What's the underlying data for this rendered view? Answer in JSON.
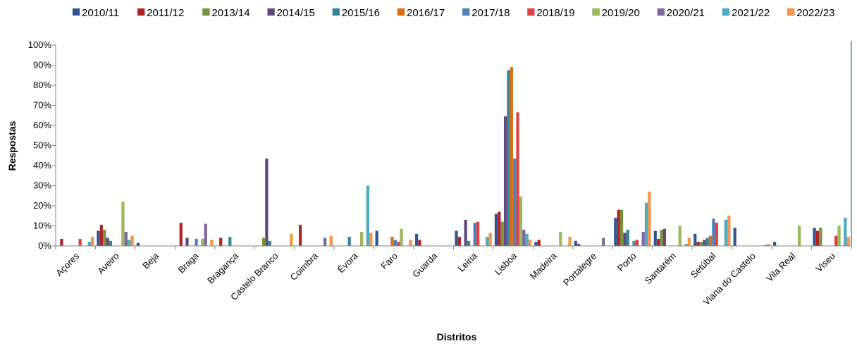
{
  "chart_data": {
    "type": "bar",
    "xlabel": "Distritos",
    "ylabel": "Respostas",
    "ylim": [
      0,
      100
    ],
    "yticks": [
      "0%",
      "10%",
      "20%",
      "30%",
      "40%",
      "50%",
      "60%",
      "70%",
      "80%",
      "90%",
      "100%"
    ],
    "legend_position": "top",
    "grid": false,
    "categories": [
      "Açores",
      "Aveiro",
      "Beja",
      "Braga",
      "Bragança",
      "Castelo Branco",
      "Coimbra",
      "Évora",
      "Faro",
      "Guarda",
      "Leiria",
      "Lisboa",
      "Madeira",
      "Portalegre",
      "Porto",
      "Santarém",
      "Setúbal",
      "Viana do Castelo",
      "Vila Real",
      "Viseu"
    ],
    "series": [
      {
        "name": "2010/11",
        "color": "#2f5597",
        "values": [
          0,
          7.5,
          1.5,
          0,
          0,
          0,
          0,
          0,
          7.5,
          6,
          7.5,
          16,
          2,
          2.5,
          14,
          7.5,
          6,
          9,
          2,
          9
        ]
      },
      {
        "name": "2011/12",
        "color": "#b22222",
        "values": [
          3.5,
          10.5,
          0,
          11.5,
          4,
          0,
          10.5,
          0,
          0,
          3,
          4.5,
          17,
          3,
          1,
          18,
          3.5,
          2,
          0,
          0,
          7.5
        ]
      },
      {
        "name": "2013/14",
        "color": "#77933c",
        "values": [
          0,
          8,
          0,
          0,
          0,
          4,
          0,
          0,
          0,
          0,
          0,
          12,
          0,
          0,
          18,
          8,
          2,
          0,
          0,
          9
        ]
      },
      {
        "name": "2014/15",
        "color": "#60497a",
        "values": [
          0,
          4,
          0,
          4,
          0,
          43.5,
          0,
          0,
          0,
          0,
          13,
          64.5,
          0,
          0,
          6.5,
          8.5,
          3,
          0,
          0,
          0
        ]
      },
      {
        "name": "2015/16",
        "color": "#31859c",
        "values": [
          0,
          2.5,
          0,
          0,
          4.5,
          2.5,
          0,
          4.5,
          0,
          0,
          2.5,
          87.5,
          0,
          0,
          8,
          0,
          4,
          0,
          0,
          0
        ]
      },
      {
        "name": "2016/17",
        "color": "#e46c0a",
        "values": [
          0,
          0,
          0,
          0,
          0,
          0,
          0,
          0,
          4.5,
          0,
          0,
          89,
          0,
          0,
          0,
          0,
          5,
          0,
          0,
          0
        ]
      },
      {
        "name": "2017/18",
        "color": "#4f81bd",
        "values": [
          0,
          0,
          0,
          3.5,
          0,
          0,
          0,
          0,
          3,
          0,
          11.5,
          43.5,
          0,
          0,
          2.5,
          0,
          13.5,
          0,
          0,
          0
        ]
      },
      {
        "name": "2018/19",
        "color": "#e04040",
        "values": [
          3.5,
          0,
          0,
          0,
          0,
          0,
          0,
          0,
          2,
          0,
          12,
          66.5,
          0,
          0,
          3,
          0,
          11.5,
          0,
          0,
          5
        ]
      },
      {
        "name": "2019/20",
        "color": "#9bbb59",
        "values": [
          0,
          22,
          0,
          3.5,
          0,
          0,
          0,
          7,
          8.5,
          0,
          0,
          24.5,
          7,
          0,
          0,
          10,
          0,
          0,
          10,
          10
        ]
      },
      {
        "name": "2020/21",
        "color": "#8064a2",
        "values": [
          0,
          7,
          0,
          11,
          0,
          0,
          4,
          0,
          0,
          0,
          0,
          8,
          0,
          4,
          7,
          0,
          0,
          0,
          0,
          0
        ]
      },
      {
        "name": "2021/22",
        "color": "#4bacc6",
        "values": [
          2,
          3,
          0,
          0,
          0,
          0,
          0,
          30,
          0,
          0,
          4.5,
          6,
          0,
          0,
          21.5,
          1,
          13,
          0.5,
          0,
          14
        ]
      },
      {
        "name": "2022/23",
        "color": "#f79646",
        "values": [
          4.5,
          5,
          0,
          3,
          0,
          6,
          5,
          6.5,
          3,
          0,
          6.5,
          3,
          4.5,
          0,
          27,
          4,
          15,
          1,
          0,
          4.5
        ]
      }
    ]
  }
}
